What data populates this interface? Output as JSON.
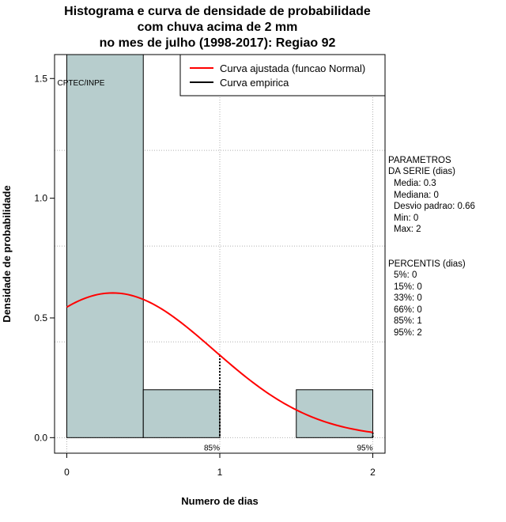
{
  "title_lines": [
    "Histograma e curva de densidade de probabilidade",
    "com chuva acima de 2 mm",
    "no mes de julho (1998-2017): Regiao 92"
  ],
  "watermark": "CPTEC/INPE",
  "legend": {
    "fitted_label": "Curva ajustada (funcao Normal)",
    "empirical_label": "Curva empirica",
    "fitted_color": "#ff0000",
    "empirical_color": "#000000"
  },
  "parameters": {
    "header1": "PARAMETROS",
    "header2": "DA SERIE (dias)",
    "lines": [
      "Media: 0.3",
      "Mediana: 0",
      "Desvio padrao: 0.66",
      "Min: 0",
      "Max: 2"
    ]
  },
  "percentiles": {
    "header": "PERCENTIS (dias)",
    "lines": [
      "5%: 0",
      "15%: 0",
      "33%: 0",
      "66%: 0",
      "85%: 1",
      "95%: 2"
    ]
  },
  "chart_data": {
    "type": "bar",
    "title": "Histograma e curva de densidade de probabilidade com chuva acima de 2 mm no mes de julho (1998-2017): Regiao 92",
    "xlabel": "Numero de dias",
    "ylabel": "Densidade de probabilidade",
    "xlim": [
      -0.08,
      2.08
    ],
    "ylim": [
      -0.065,
      1.6
    ],
    "x_ticks": [
      0,
      1,
      2
    ],
    "y_ticks": [
      0.0,
      0.5,
      1.0,
      1.5
    ],
    "y_tick_labels": [
      "0.0",
      "0.5",
      "1.0",
      "1.5"
    ],
    "grid": true,
    "bar_color": "#b7cdcd",
    "bins": [
      {
        "x0": 0.0,
        "x1": 0.5,
        "density": 1.6
      },
      {
        "x0": 0.5,
        "x1": 1.0,
        "density": 0.2
      },
      {
        "x0": 1.0,
        "x1": 1.5,
        "density": 0.0
      },
      {
        "x0": 1.5,
        "x1": 2.0,
        "density": 0.2
      }
    ],
    "normal_fit": {
      "mean": 0.3,
      "sd": 0.66,
      "x_from": 0,
      "x_to": 2
    },
    "percentile_markers": [
      {
        "x": 1,
        "label": "85%"
      },
      {
        "x": 2,
        "label": "95%"
      }
    ]
  }
}
